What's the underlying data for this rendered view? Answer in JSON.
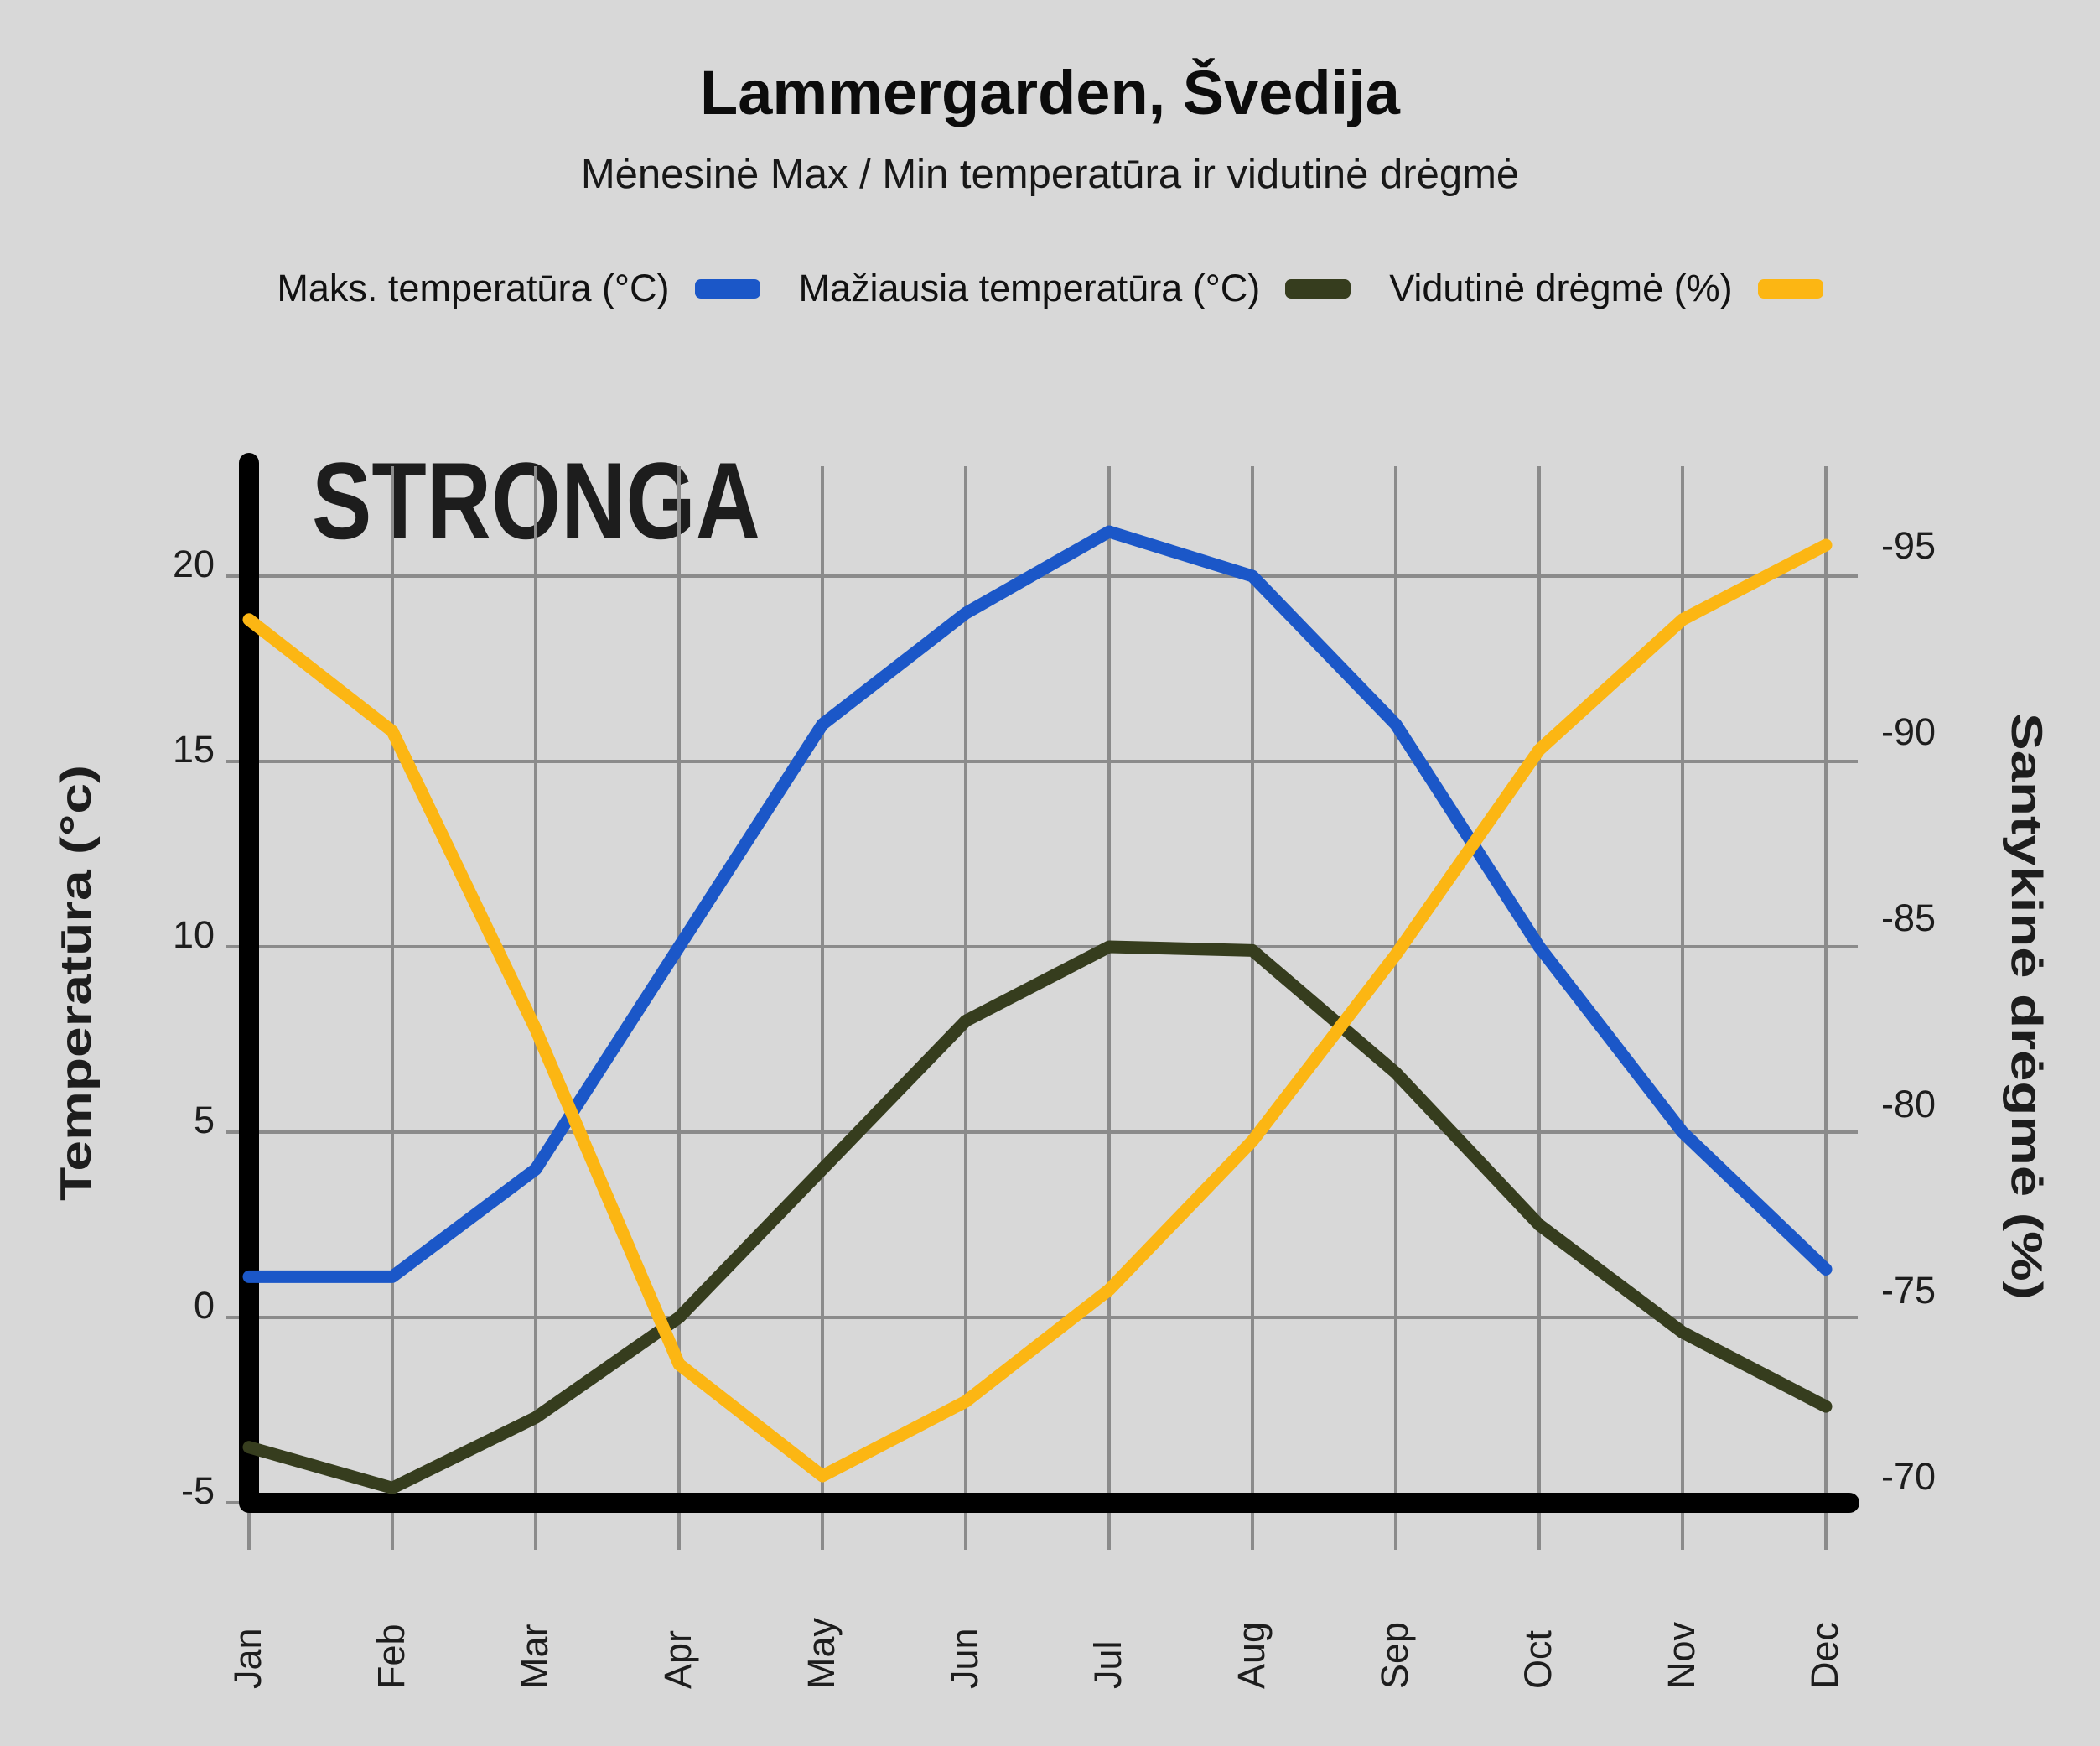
{
  "title": "Lammergarden, Švedija",
  "subtitle": "Mėnesinė Max / Min temperatūra ir vidutinė drėgmė",
  "watermark": "STRONGA",
  "legend": [
    {
      "label": "Maks. temperatūra (°C)",
      "color": "#1b57c8"
    },
    {
      "label": "Mažiausia temperatūra (°C)",
      "color": "#363d1e"
    },
    {
      "label": "Vidutinė drėgmė (%)",
      "color": "#fcb613"
    }
  ],
  "colors": {
    "background": "#d8d8d8",
    "grid": "#8b8b8b",
    "axis": "#000000",
    "max_temp": "#1b57c8",
    "min_temp": "#363d1e",
    "humidity": "#fcb613",
    "watermark": "#9cab95",
    "text": "#1d1d1d"
  },
  "chart_data": {
    "type": "line",
    "categories": [
      "Jan",
      "Feb",
      "Mar",
      "Apr",
      "May",
      "Jun",
      "Jul",
      "Aug",
      "Sep",
      "Oct",
      "Nov",
      "Dec"
    ],
    "series": [
      {
        "name": "Maks. temperatūra (°C)",
        "axis": "left",
        "color": "#1b57c8",
        "values": [
          1.1,
          1.1,
          4,
          10,
          16,
          19,
          21.2,
          20,
          16,
          10,
          5,
          1.3
        ]
      },
      {
        "name": "Mažiausia temperatūra (°C)",
        "axis": "left",
        "color": "#363d1e",
        "values": [
          -3.5,
          -4.6,
          -2.7,
          0,
          4,
          8,
          10,
          9.9,
          6.6,
          2.5,
          -0.4,
          -2.4
        ]
      },
      {
        "name": "Vidutinė drėgmė (%)",
        "axis": "right",
        "color": "#fcb613",
        "values": [
          -93,
          -90,
          -82,
          -73,
          -70,
          -72,
          -75,
          -79,
          -84,
          -89.5,
          -93,
          -95
        ]
      }
    ],
    "left_axis": {
      "label": "Temperatūra (°c)",
      "ticks": [
        20,
        15,
        10,
        5,
        0,
        -5
      ],
      "range": [
        -5.5,
        23
      ]
    },
    "right_axis": {
      "label": "Santykinė drėgmė  (%)",
      "ticks": [
        -95,
        -90,
        -85,
        -80,
        -75,
        -70
      ],
      "range": [
        -96,
        -69
      ]
    },
    "grid": true,
    "legend_position": "top"
  }
}
